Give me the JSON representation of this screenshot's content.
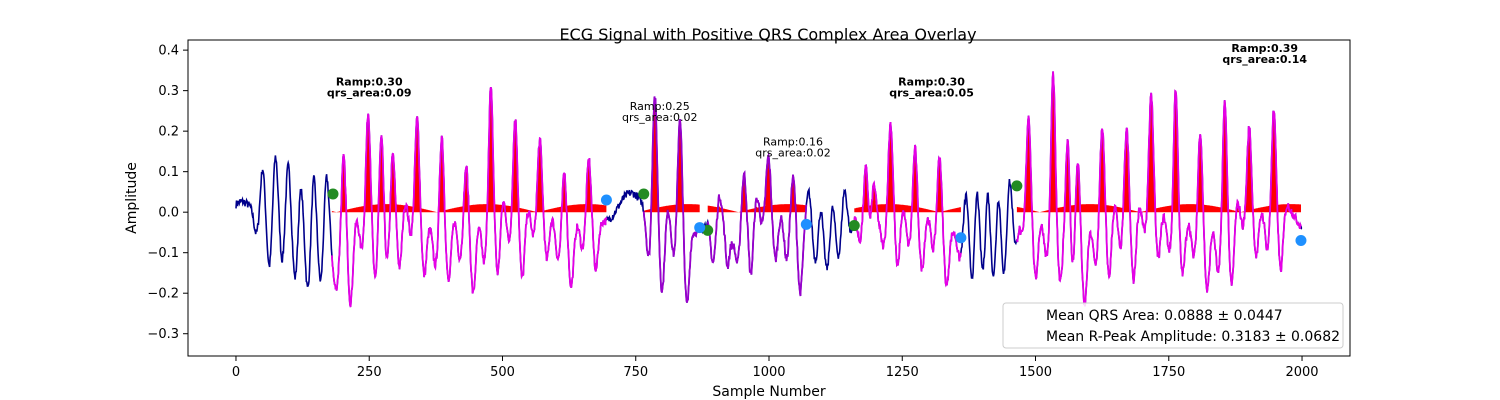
{
  "chart_data": {
    "type": "line",
    "title": "ECG Signal with Positive QRS Complex Area Overlay",
    "xlabel": "Sample Number",
    "ylabel": "Amplitude",
    "xlim": [
      -90,
      2090
    ],
    "ylim": [
      -0.355,
      0.425
    ],
    "xticks": [
      0,
      250,
      500,
      750,
      1000,
      1250,
      1500,
      1750,
      2000
    ],
    "yticks": [
      -0.3,
      -0.2,
      -0.1,
      0.0,
      0.1,
      0.2,
      0.3,
      0.4
    ],
    "xtick_labels": [
      "0",
      "250",
      "500",
      "750",
      "1000",
      "1250",
      "1500",
      "1750",
      "2000"
    ],
    "ytick_labels": [
      "−0.3",
      "−0.2",
      "−0.1",
      "0.0",
      "0.1",
      "0.2",
      "0.3",
      "0.4"
    ],
    "grid": false,
    "colors": {
      "signal": "#00008b",
      "qrs_segment": "#e600e6",
      "transition_segment": "#9900cc",
      "area_fill": "#ff0000",
      "onset_marker": "#228b22",
      "offset_marker": "#1e90ff"
    },
    "segments": [
      {
        "x_start": 180,
        "x_end": 695,
        "peak": 0.3,
        "kind": "qrs"
      },
      {
        "x_start": 765,
        "x_end": 870,
        "peak": 0.25,
        "kind": "transition"
      },
      {
        "x_start": 885,
        "x_end": 1070,
        "peak": 0.16,
        "kind": "transition"
      },
      {
        "x_start": 1160,
        "x_end": 1360,
        "peak": 0.3,
        "kind": "qrs"
      },
      {
        "x_start": 1465,
        "x_end": 1998,
        "peak": 0.39,
        "kind": "qrs"
      }
    ],
    "onset_markers": [
      {
        "x": 182,
        "y": 0.045
      },
      {
        "x": 765,
        "y": 0.045
      },
      {
        "x": 885,
        "y": -0.045
      },
      {
        "x": 1160,
        "y": -0.033
      },
      {
        "x": 1465,
        "y": 0.065
      }
    ],
    "offset_markers": [
      {
        "x": 695,
        "y": 0.03
      },
      {
        "x": 870,
        "y": -0.038
      },
      {
        "x": 1070,
        "y": -0.03
      },
      {
        "x": 1360,
        "y": -0.063
      },
      {
        "x": 1998,
        "y": -0.07
      }
    ],
    "annotations": [
      {
        "x": 250,
        "y": 0.285,
        "ramp_label": "Ramp:0.30",
        "area_label": "qrs_area:0.09",
        "bold": true
      },
      {
        "x": 795,
        "y": 0.225,
        "ramp_label": "Ramp:0.25",
        "area_label": "qrs_area:0.02",
        "bold": false
      },
      {
        "x": 1045,
        "y": 0.138,
        "ramp_label": "Ramp:0.16",
        "area_label": "qrs_area:0.02",
        "bold": false
      },
      {
        "x": 1305,
        "y": 0.285,
        "ramp_label": "Ramp:0.30",
        "area_label": "qrs_area:0.05",
        "bold": true
      },
      {
        "x": 1930,
        "y": 0.368,
        "ramp_label": "Ramp:0.39",
        "area_label": "qrs_area:0.14",
        "bold": true
      }
    ],
    "legend": {
      "placement": "lower-right",
      "entries": [
        "Mean QRS Area: 0.0888 ± 0.0447",
        "Mean R-Peak Amplitude: 0.3183 ± 0.0682"
      ]
    }
  }
}
